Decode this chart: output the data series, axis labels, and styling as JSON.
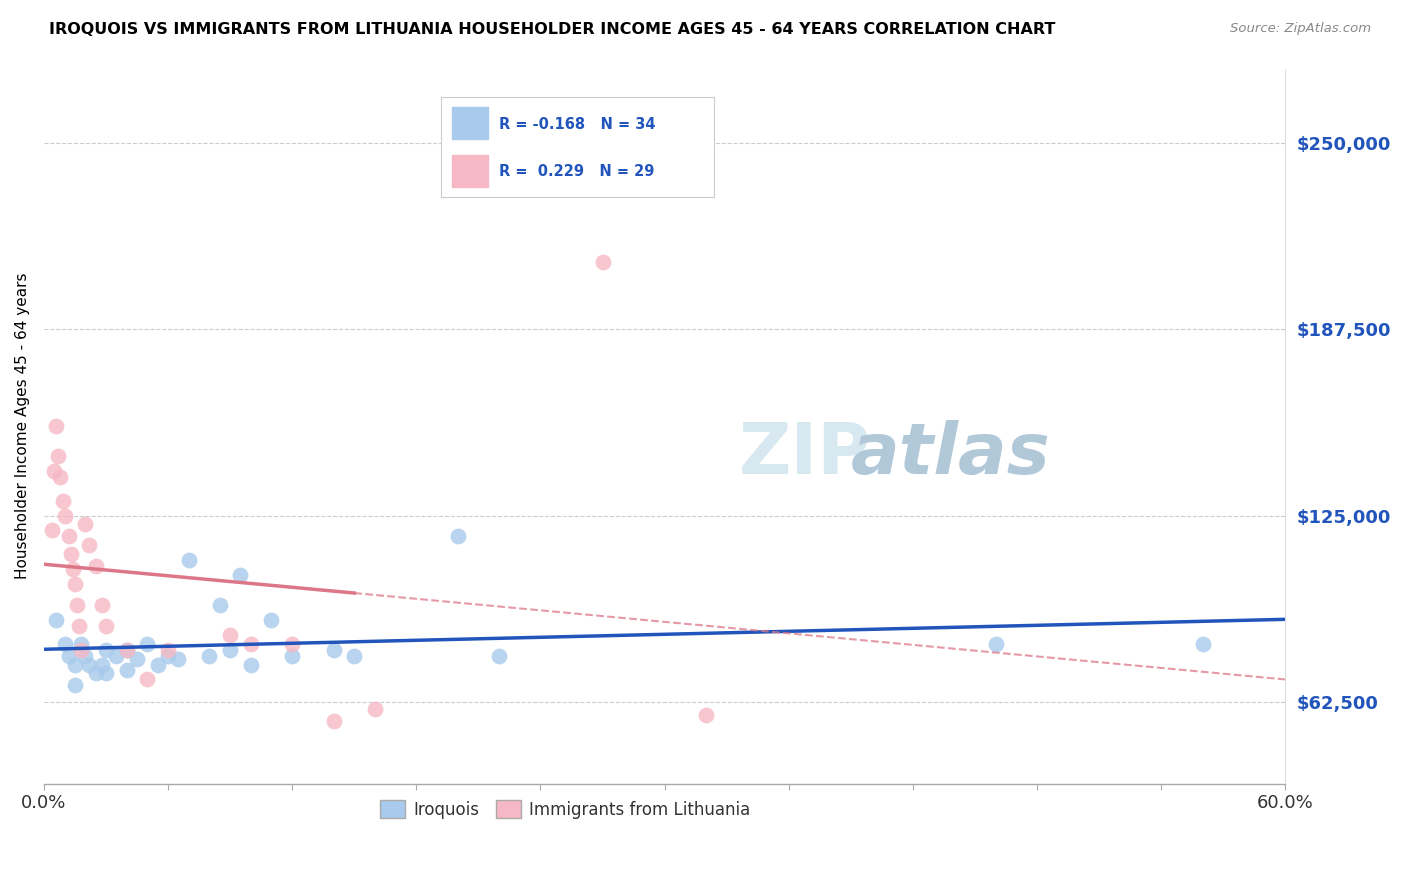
{
  "title": "IROQUOIS VS IMMIGRANTS FROM LITHUANIA HOUSEHOLDER INCOME AGES 45 - 64 YEARS CORRELATION CHART",
  "source": "Source: ZipAtlas.com",
  "ylabel": "Householder Income Ages 45 - 64 years",
  "yticks": [
    62500,
    125000,
    187500,
    250000
  ],
  "ytick_labels": [
    "$62,500",
    "$125,000",
    "$187,500",
    "$250,000"
  ],
  "xlim": [
    0.0,
    0.6
  ],
  "ylim": [
    35000,
    275000
  ],
  "legend1_label": "Iroquois",
  "legend2_label": "Immigrants from Lithuania",
  "r1": "-0.168",
  "n1": "34",
  "r2": "0.229",
  "n2": "29",
  "blue_color": "#A8CAEC",
  "pink_color": "#F5B8C4",
  "blue_line_color": "#2255BB",
  "pink_line_color": "#DD7788",
  "blue_scatter": [
    [
      0.006,
      90000
    ],
    [
      0.01,
      82000
    ],
    [
      0.012,
      78000
    ],
    [
      0.015,
      75000
    ],
    [
      0.015,
      68000
    ],
    [
      0.018,
      82000
    ],
    [
      0.02,
      78000
    ],
    [
      0.022,
      75000
    ],
    [
      0.025,
      72000
    ],
    [
      0.028,
      75000
    ],
    [
      0.03,
      80000
    ],
    [
      0.03,
      72000
    ],
    [
      0.035,
      78000
    ],
    [
      0.04,
      80000
    ],
    [
      0.04,
      73000
    ],
    [
      0.045,
      77000
    ],
    [
      0.05,
      82000
    ],
    [
      0.055,
      75000
    ],
    [
      0.06,
      78000
    ],
    [
      0.065,
      77000
    ],
    [
      0.07,
      110000
    ],
    [
      0.08,
      78000
    ],
    [
      0.085,
      95000
    ],
    [
      0.09,
      80000
    ],
    [
      0.095,
      105000
    ],
    [
      0.1,
      75000
    ],
    [
      0.11,
      90000
    ],
    [
      0.12,
      78000
    ],
    [
      0.14,
      80000
    ],
    [
      0.15,
      78000
    ],
    [
      0.2,
      118000
    ],
    [
      0.22,
      78000
    ],
    [
      0.46,
      82000
    ],
    [
      0.56,
      82000
    ]
  ],
  "pink_scatter": [
    [
      0.004,
      120000
    ],
    [
      0.005,
      140000
    ],
    [
      0.006,
      155000
    ],
    [
      0.007,
      145000
    ],
    [
      0.008,
      138000
    ],
    [
      0.009,
      130000
    ],
    [
      0.01,
      125000
    ],
    [
      0.012,
      118000
    ],
    [
      0.013,
      112000
    ],
    [
      0.014,
      107000
    ],
    [
      0.015,
      102000
    ],
    [
      0.016,
      95000
    ],
    [
      0.017,
      88000
    ],
    [
      0.018,
      80000
    ],
    [
      0.02,
      122000
    ],
    [
      0.022,
      115000
    ],
    [
      0.025,
      108000
    ],
    [
      0.028,
      95000
    ],
    [
      0.03,
      88000
    ],
    [
      0.04,
      80000
    ],
    [
      0.05,
      70000
    ],
    [
      0.06,
      80000
    ],
    [
      0.09,
      85000
    ],
    [
      0.1,
      82000
    ],
    [
      0.12,
      82000
    ],
    [
      0.14,
      56000
    ],
    [
      0.16,
      60000
    ],
    [
      0.27,
      210000
    ],
    [
      0.32,
      58000
    ]
  ],
  "xtick_positions": [
    0.0,
    0.06,
    0.12,
    0.18,
    0.24,
    0.3,
    0.36,
    0.42,
    0.48,
    0.54,
    0.6
  ]
}
